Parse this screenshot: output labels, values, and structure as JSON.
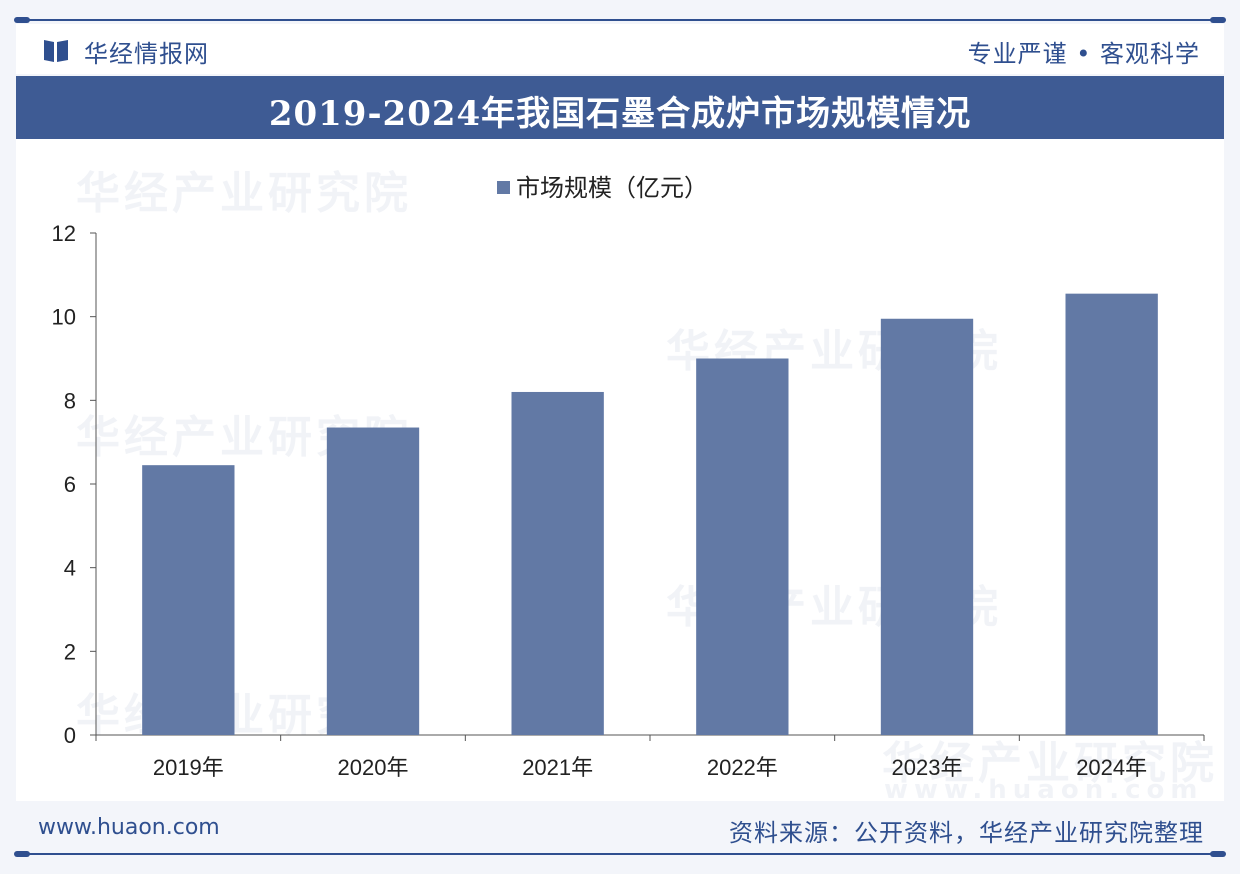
{
  "header": {
    "logo_text": "华经情报网",
    "slogan": "专业严谨 • 客观科学"
  },
  "title": "2019-2024年我国石墨合成炉市场规模情况",
  "watermark_text": "华经产业研究院",
  "watermark_url": "www.huaon.com",
  "footer": {
    "url": "www.huaon.com",
    "source": "资料来源：公开资料，华经产业研究院整理"
  },
  "colors": {
    "brand": "#2f4f8f",
    "title_bar": "#3e5b94",
    "bar": "#6279a5"
  },
  "chart_data": {
    "type": "bar",
    "categories": [
      "2019年",
      "2020年",
      "2021年",
      "2022年",
      "2023年",
      "2024年"
    ],
    "series": [
      {
        "name": "市场规模（亿元）",
        "values": [
          6.45,
          7.35,
          8.2,
          9.0,
          9.95,
          10.55
        ]
      }
    ],
    "ylim": [
      0,
      12
    ],
    "yticks": [
      0,
      2,
      4,
      6,
      8,
      10,
      12
    ],
    "legend": "top-center",
    "grid": false
  }
}
